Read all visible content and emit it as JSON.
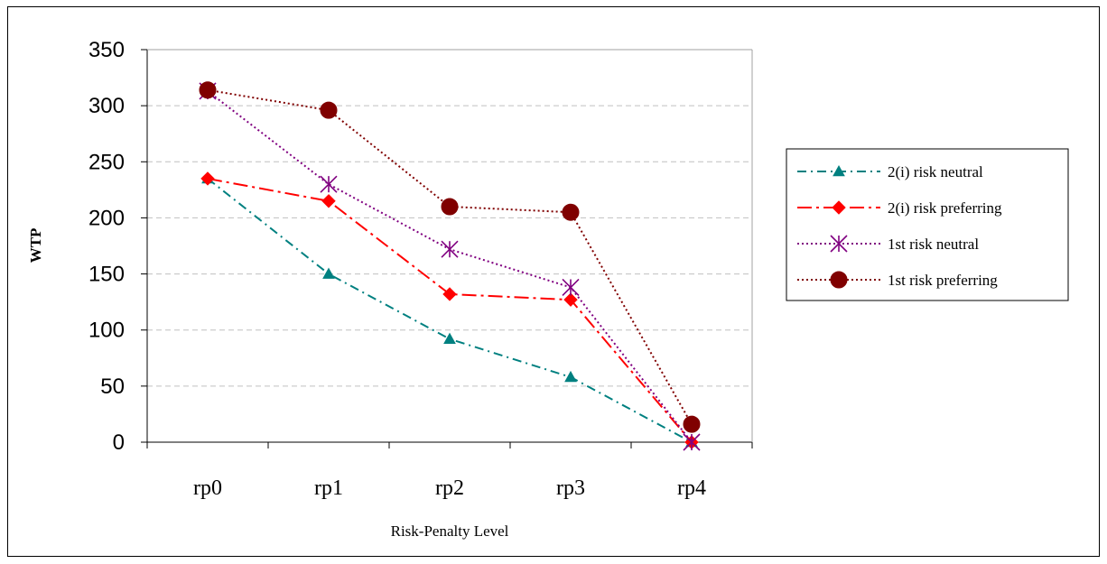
{
  "chart_data": {
    "type": "line",
    "categories": [
      "rp0",
      "rp1",
      "rp2",
      "rp3",
      "rp4"
    ],
    "xlabel": "Risk-Penalty Level",
    "ylabel": "WTP",
    "ylim": [
      0,
      350
    ],
    "yticks": [
      0,
      50,
      100,
      150,
      200,
      250,
      300,
      350
    ],
    "grid": "horizontal dashed",
    "legend_position": "right",
    "series": [
      {
        "name": "2(i) risk neutral",
        "values": [
          235,
          150,
          92,
          58,
          0
        ],
        "color": "#008080",
        "marker": "triangle",
        "dash": "dash-dot"
      },
      {
        "name": "2(i) risk preferring",
        "values": [
          235,
          215,
          132,
          127,
          0
        ],
        "color": "#ff0000",
        "marker": "diamond",
        "dash": "long-dash-dot"
      },
      {
        "name": "1st risk neutral",
        "values": [
          313,
          230,
          172,
          138,
          0
        ],
        "color": "#800080",
        "marker": "star",
        "dash": "dotted"
      },
      {
        "name": "1st risk preferring",
        "values": [
          314,
          296,
          210,
          205,
          16
        ],
        "color": "#800000",
        "marker": "circle",
        "dash": "dotted"
      }
    ]
  }
}
